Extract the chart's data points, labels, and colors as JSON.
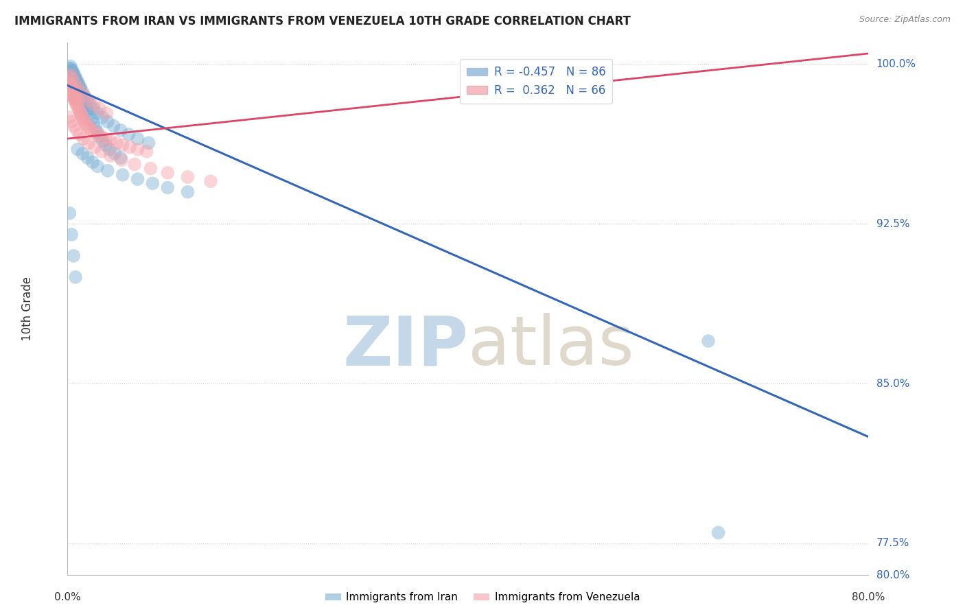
{
  "title": "IMMIGRANTS FROM IRAN VS IMMIGRANTS FROM VENEZUELA 10TH GRADE CORRELATION CHART",
  "source": "Source: ZipAtlas.com",
  "ylabel": "10th Grade",
  "legend_blue_r": "R = -0.457",
  "legend_blue_n": "N = 86",
  "legend_pink_r": "R =  0.362",
  "legend_pink_n": "N = 66",
  "blue_color": "#7BAFD4",
  "pink_color": "#F4A0A8",
  "blue_line_color": "#3366BB",
  "pink_line_color": "#DD4466",
  "watermark_zip_color": "#C5D8EA",
  "watermark_atlas_color": "#C8C0A8",
  "grid_color": "#CCCCCC",
  "xmin": 0.0,
  "xmax": 0.8,
  "ymin": 0.76,
  "ymax": 1.01,
  "blue_trend_x0": 0.0,
  "blue_trend_y0": 0.99,
  "blue_trend_x1": 0.8,
  "blue_trend_y1": 0.825,
  "pink_trend_x0": 0.0,
  "pink_trend_y0": 0.965,
  "pink_trend_x1": 0.8,
  "pink_trend_y1": 1.005,
  "blue_scatter_x": [
    0.001,
    0.002,
    0.002,
    0.003,
    0.003,
    0.003,
    0.004,
    0.004,
    0.004,
    0.005,
    0.005,
    0.005,
    0.006,
    0.006,
    0.006,
    0.007,
    0.007,
    0.007,
    0.008,
    0.008,
    0.008,
    0.008,
    0.009,
    0.009,
    0.009,
    0.01,
    0.01,
    0.011,
    0.011,
    0.012,
    0.012,
    0.013,
    0.014,
    0.015,
    0.016,
    0.017,
    0.018,
    0.019,
    0.02,
    0.022,
    0.024,
    0.026,
    0.028,
    0.03,
    0.032,
    0.035,
    0.038,
    0.042,
    0.047,
    0.053,
    0.003,
    0.005,
    0.007,
    0.009,
    0.011,
    0.013,
    0.015,
    0.017,
    0.02,
    0.023,
    0.026,
    0.03,
    0.035,
    0.04,
    0.046,
    0.053,
    0.061,
    0.07,
    0.081,
    0.01,
    0.015,
    0.02,
    0.025,
    0.03,
    0.04,
    0.055,
    0.07,
    0.085,
    0.1,
    0.12,
    0.002,
    0.004,
    0.006,
    0.008,
    0.64,
    0.65
  ],
  "blue_scatter_y": [
    0.998,
    0.996,
    0.994,
    0.998,
    0.995,
    0.992,
    0.997,
    0.994,
    0.991,
    0.996,
    0.993,
    0.99,
    0.995,
    0.992,
    0.989,
    0.994,
    0.991,
    0.988,
    0.993,
    0.99,
    0.987,
    0.984,
    0.992,
    0.989,
    0.986,
    0.991,
    0.988,
    0.99,
    0.987,
    0.989,
    0.986,
    0.988,
    0.986,
    0.984,
    0.983,
    0.981,
    0.98,
    0.979,
    0.978,
    0.976,
    0.974,
    0.972,
    0.97,
    0.968,
    0.966,
    0.964,
    0.962,
    0.96,
    0.958,
    0.956,
    0.999,
    0.997,
    0.995,
    0.993,
    0.991,
    0.989,
    0.987,
    0.985,
    0.983,
    0.981,
    0.979,
    0.977,
    0.975,
    0.973,
    0.971,
    0.969,
    0.967,
    0.965,
    0.963,
    0.96,
    0.958,
    0.956,
    0.954,
    0.952,
    0.95,
    0.948,
    0.946,
    0.944,
    0.942,
    0.94,
    0.93,
    0.92,
    0.91,
    0.9,
    0.87,
    0.78
  ],
  "pink_scatter_x": [
    0.001,
    0.002,
    0.002,
    0.003,
    0.003,
    0.004,
    0.004,
    0.005,
    0.005,
    0.006,
    0.006,
    0.007,
    0.007,
    0.008,
    0.008,
    0.009,
    0.009,
    0.01,
    0.01,
    0.011,
    0.012,
    0.013,
    0.014,
    0.015,
    0.016,
    0.017,
    0.018,
    0.02,
    0.022,
    0.024,
    0.027,
    0.03,
    0.034,
    0.038,
    0.043,
    0.049,
    0.055,
    0.062,
    0.07,
    0.079,
    0.003,
    0.005,
    0.007,
    0.01,
    0.013,
    0.017,
    0.021,
    0.026,
    0.032,
    0.039,
    0.002,
    0.004,
    0.006,
    0.009,
    0.012,
    0.016,
    0.021,
    0.027,
    0.034,
    0.043,
    0.054,
    0.067,
    0.083,
    0.1,
    0.12,
    0.143
  ],
  "pink_scatter_y": [
    0.994,
    0.991,
    0.988,
    0.99,
    0.987,
    0.989,
    0.986,
    0.988,
    0.985,
    0.987,
    0.984,
    0.986,
    0.983,
    0.985,
    0.982,
    0.984,
    0.981,
    0.983,
    0.98,
    0.979,
    0.978,
    0.977,
    0.976,
    0.975,
    0.974,
    0.973,
    0.972,
    0.971,
    0.97,
    0.969,
    0.968,
    0.967,
    0.966,
    0.965,
    0.964,
    0.963,
    0.962,
    0.961,
    0.96,
    0.959,
    0.995,
    0.993,
    0.991,
    0.989,
    0.987,
    0.985,
    0.983,
    0.981,
    0.979,
    0.977,
    0.975,
    0.973,
    0.971,
    0.969,
    0.967,
    0.965,
    0.963,
    0.961,
    0.959,
    0.957,
    0.955,
    0.953,
    0.951,
    0.949,
    0.947,
    0.945
  ],
  "right_labels": [
    [
      "100.0%",
      1.0
    ],
    [
      "92.5%",
      0.925
    ],
    [
      "85.0%",
      0.85
    ],
    [
      "77.5%",
      0.775
    ]
  ],
  "bottom_x_labels": [
    [
      "0.0%",
      0.0
    ],
    [
      "80.0%",
      0.8
    ]
  ],
  "bottom_right_label": "80.0%"
}
